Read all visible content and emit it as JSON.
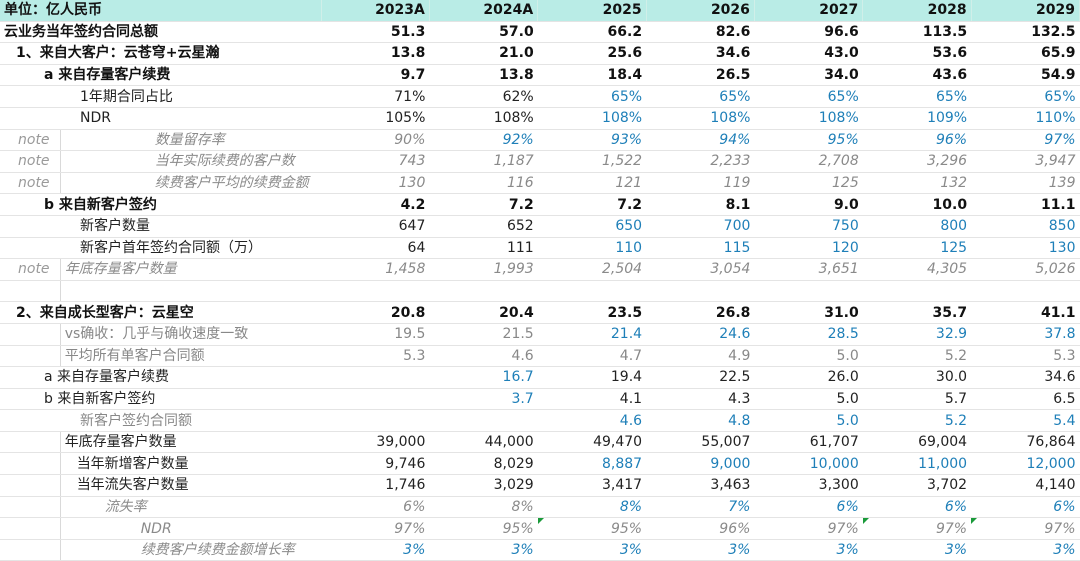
{
  "header": {
    "unit_label": "单位：亿人民币",
    "years": [
      "2023A",
      "2024A",
      "2025",
      "2026",
      "2027",
      "2028",
      "2029"
    ]
  },
  "rows": [
    {
      "note": "",
      "label": "云业务当年签约合同总额",
      "values": [
        "51.3",
        "57.0",
        "66.2",
        "82.6",
        "96.6",
        "113.5",
        "132.5"
      ]
    },
    {
      "note": "",
      "label": "1、来自大客户：云苍穹+云星瀚",
      "values": [
        "13.8",
        "21.0",
        "25.6",
        "34.6",
        "43.0",
        "53.6",
        "65.9"
      ]
    },
    {
      "note": "",
      "label": "a 来自存量客户续费",
      "values": [
        "9.7",
        "13.8",
        "18.4",
        "26.5",
        "34.0",
        "43.6",
        "54.9"
      ]
    },
    {
      "note": "",
      "label": "1年期合同占比",
      "values": [
        "71%",
        "62%",
        "65%",
        "65%",
        "65%",
        "65%",
        "65%"
      ]
    },
    {
      "note": "",
      "label": "NDR",
      "values": [
        "105%",
        "108%",
        "108%",
        "108%",
        "108%",
        "109%",
        "110%"
      ]
    },
    {
      "note": "note",
      "label": "数量留存率",
      "values": [
        "90%",
        "92%",
        "93%",
        "94%",
        "95%",
        "96%",
        "97%"
      ]
    },
    {
      "note": "note",
      "label": "当年实际续费的客户数",
      "values": [
        "743",
        "1,187",
        "1,522",
        "2,233",
        "2,708",
        "3,296",
        "3,947"
      ]
    },
    {
      "note": "note",
      "label": "续费客户平均的续费金额",
      "values": [
        "130",
        "116",
        "121",
        "119",
        "125",
        "132",
        "139"
      ]
    },
    {
      "note": "",
      "label": "b 来自新客户签约",
      "values": [
        "4.2",
        "7.2",
        "7.2",
        "8.1",
        "9.0",
        "10.0",
        "11.1"
      ]
    },
    {
      "note": "",
      "label": "新客户数量",
      "values": [
        "647",
        "652",
        "650",
        "700",
        "750",
        "800",
        "850"
      ]
    },
    {
      "note": "",
      "label": "新客户首年签约合同额（万）",
      "values": [
        "64",
        "111",
        "110",
        "115",
        "120",
        "125",
        "130"
      ]
    },
    {
      "note": "note",
      "label": "年底存量客户数量",
      "values": [
        "1,458",
        "1,993",
        "2,504",
        "3,054",
        "3,651",
        "4,305",
        "5,026"
      ]
    },
    {
      "note": "",
      "label": "",
      "values": [
        "",
        "",
        "",
        "",
        "",
        "",
        ""
      ]
    },
    {
      "note": "",
      "label": "2、来自成长型客户：云星空",
      "values": [
        "20.8",
        "20.4",
        "23.5",
        "26.8",
        "31.0",
        "35.7",
        "41.1"
      ]
    },
    {
      "note": "",
      "label": "vs确收：几乎与确收速度一致",
      "values": [
        "19.5",
        "21.5",
        "21.4",
        "24.6",
        "28.5",
        "32.9",
        "37.8"
      ]
    },
    {
      "note": "",
      "label": "平均所有单客户合同额",
      "values": [
        "5.3",
        "4.6",
        "4.7",
        "4.9",
        "5.0",
        "5.2",
        "5.3"
      ]
    },
    {
      "note": "",
      "label": "a 来自存量客户续费",
      "values": [
        "",
        "16.7",
        "19.4",
        "22.5",
        "26.0",
        "30.0",
        "34.6"
      ]
    },
    {
      "note": "",
      "label": "b 来自新客户签约",
      "values": [
        "",
        "3.7",
        "4.1",
        "4.3",
        "5.0",
        "5.7",
        "6.5"
      ]
    },
    {
      "note": "",
      "label": "新客户签约合同额",
      "values": [
        "",
        "",
        "4.6",
        "4.8",
        "5.0",
        "5.2",
        "5.4"
      ]
    },
    {
      "note": "",
      "label": "年底存量客户数量",
      "values": [
        "39,000",
        "44,000",
        "49,470",
        "55,007",
        "61,707",
        "69,004",
        "76,864"
      ]
    },
    {
      "note": "",
      "label": "当年新增客户数量",
      "values": [
        "9,746",
        "8,029",
        "8,887",
        "9,000",
        "10,000",
        "11,000",
        "12,000"
      ]
    },
    {
      "note": "",
      "label": "当年流失客户数量",
      "values": [
        "1,746",
        "3,029",
        "3,417",
        "3,463",
        "3,300",
        "3,702",
        "4,140"
      ]
    },
    {
      "note": "",
      "label": "流失率",
      "values": [
        "6%",
        "8%",
        "8%",
        "7%",
        "6%",
        "6%",
        "6%"
      ]
    },
    {
      "note": "",
      "label": "NDR",
      "values": [
        "97%",
        "95%",
        "95%",
        "96%",
        "97%",
        "97%",
        "97%"
      ]
    },
    {
      "note": "",
      "label": "续费客户续费金额增长率",
      "values": [
        "3%",
        "3%",
        "3%",
        "3%",
        "3%",
        "3%",
        "3%"
      ]
    }
  ],
  "colors": {
    "header_bg": "#b9ece6",
    "input_blue": "#1e7fb8",
    "note_gray": "#9a9a9a",
    "flag_green": "#1a9a3a"
  }
}
